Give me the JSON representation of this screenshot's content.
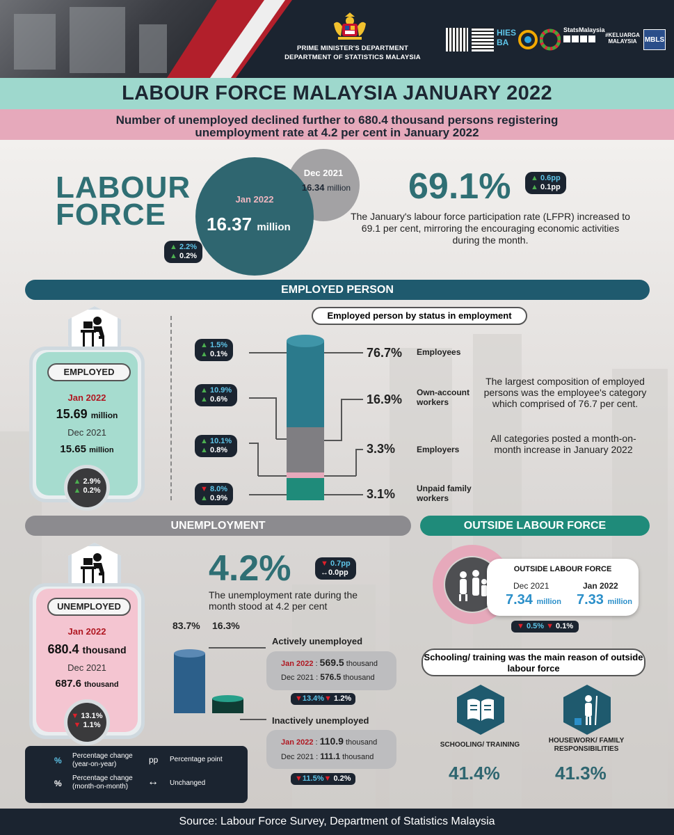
{
  "header": {
    "dept_line1": "PRIME MINISTER'S DEPARTMENT",
    "dept_line2": "DEPARTMENT OF STATISTICS MALAYSIA",
    "logos": [
      "qr-code-icon",
      "qr-code-icon",
      "hies-ba-logo",
      "sdg-logo",
      "sdg-wheel-logo",
      "statsmalaysia-social-logo",
      "keluarga-malaysia-logo",
      "mbls-logo"
    ],
    "stats_malaysia": "StatsMalaysia",
    "mbls": "MBLS"
  },
  "title": "LABOUR FORCE MALAYSIA JANUARY 2022",
  "subtitle_line1": "Number of unemployed declined further to 680.4 thousand persons registering",
  "subtitle_line2": "unemployment rate at 4.2 per cent in January 2022",
  "labour_force": {
    "word1": "LABOUR",
    "word2": "FORCE",
    "dec_label": "Dec 2021",
    "dec_value": "16.34",
    "dec_unit": "million",
    "jan_label": "Jan 2022",
    "jan_value": "16.37",
    "jan_unit": "million",
    "yoy": "2.2%",
    "mom": "0.2%",
    "lfpr": "69.1%",
    "lfpr_yoy": "0.6pp",
    "lfpr_mom": "0.1pp",
    "lfpr_desc": "The January's labour force participation rate (LFPR) increased to 69.1 per cent, mirroring the encouraging economic activities during the month."
  },
  "employed": {
    "section": "EMPLOYED PERSON",
    "label": "EMPLOYED",
    "jan_label": "Jan 2022",
    "jan_value": "15.69",
    "jan_unit": "million",
    "dec_label": "Dec 2021",
    "dec_value": "15.65",
    "dec_unit": "million",
    "yoy": "2.9%",
    "mom": "0.2%",
    "status_title": "Employed person by status in employment",
    "status": [
      {
        "category": "Employees",
        "pct": "76.7%",
        "yoy": "1.5%",
        "mom": "0.1%",
        "yoy_dir": "up",
        "mom_dir": "up",
        "color": "#2b7a8c"
      },
      {
        "category": "Own-account workers",
        "pct": "16.9%",
        "yoy": "10.9%",
        "mom": "0.6%",
        "yoy_dir": "up",
        "mom_dir": "up",
        "color": "#7f7e82"
      },
      {
        "category": "Employers",
        "pct": "3.3%",
        "yoy": "10.1%",
        "mom": "0.8%",
        "yoy_dir": "up",
        "mom_dir": "up",
        "color": "#e6a9bb"
      },
      {
        "category": "Unpaid family workers",
        "pct": "3.1%",
        "yoy": "8.0%",
        "mom": "0.9%",
        "yoy_dir": "down",
        "mom_dir": "up",
        "color": "#1f8b7a"
      }
    ],
    "note1": "The largest composition of employed persons was the employee's category which comprised of 76.7 per cent.",
    "note2": "All categories posted a month-on-month increase in January 2022"
  },
  "unemployment": {
    "section": "UNEMPLOYMENT",
    "label": "UNEMPLOYED",
    "jan_label": "Jan 2022",
    "jan_value": "680.4",
    "jan_unit": "thousand",
    "dec_label": "Dec 2021",
    "dec_value": "687.6",
    "dec_unit": "thousand",
    "yoy": "13.1%",
    "mom": "1.1%",
    "rate": "4.2%",
    "rate_yoy": "0.7pp",
    "rate_mom": "0.0pp",
    "rate_desc": "The unemployment rate during the month stood at 4.2 per cent",
    "active_pct": "83.7%",
    "inactive_pct": "16.3%",
    "active_share": 83.7,
    "inactive_share": 16.3,
    "active_label": "Actively unemployed",
    "active_jan": "569.5",
    "active_dec": "576.5",
    "active_yoy": "13.4%",
    "active_mom": "1.2%",
    "inactive_label": "Inactively unemployed",
    "inactive_jan": "110.9",
    "inactive_dec": "111.1",
    "inactive_yoy": "11.5%",
    "inactive_mom": "0.2%",
    "row_jan": "Jan 2022",
    "row_dec": "Dec 2021",
    "unit": "thousand",
    "sep": ":"
  },
  "outside": {
    "section": "OUTSIDE LABOUR FORCE",
    "box_title": "OUTSIDE LABOUR FORCE",
    "dec_label": "Dec 2021",
    "dec_value": "7.34",
    "jan_label": "Jan 2022",
    "jan_value": "7.33",
    "unit": "million",
    "yoy": "0.5%",
    "mom": "0.1%",
    "reason_title": "Schooling/ training was the main reason of outside labour force",
    "reason1_label": "SCHOOLING/ TRAINING",
    "reason1_pct": "41.4%",
    "reason2_label": "HOUSEWORK/ FAMILY RESPONSIBILITIES",
    "reason2_pct": "41.3%"
  },
  "legend": {
    "yoy_symbol": "%",
    "yoy_text": "Percentage change (year-on-year)",
    "mom_symbol": "%",
    "mom_text": "Percentage change (month-on-month)",
    "pp_symbol": "pp",
    "pp_text": "Percentage point",
    "unchanged_symbol": "↔",
    "unchanged_text": "Unchanged"
  },
  "footer": "Source: Labour Force Survey, Department of Statistics Malaysia"
}
